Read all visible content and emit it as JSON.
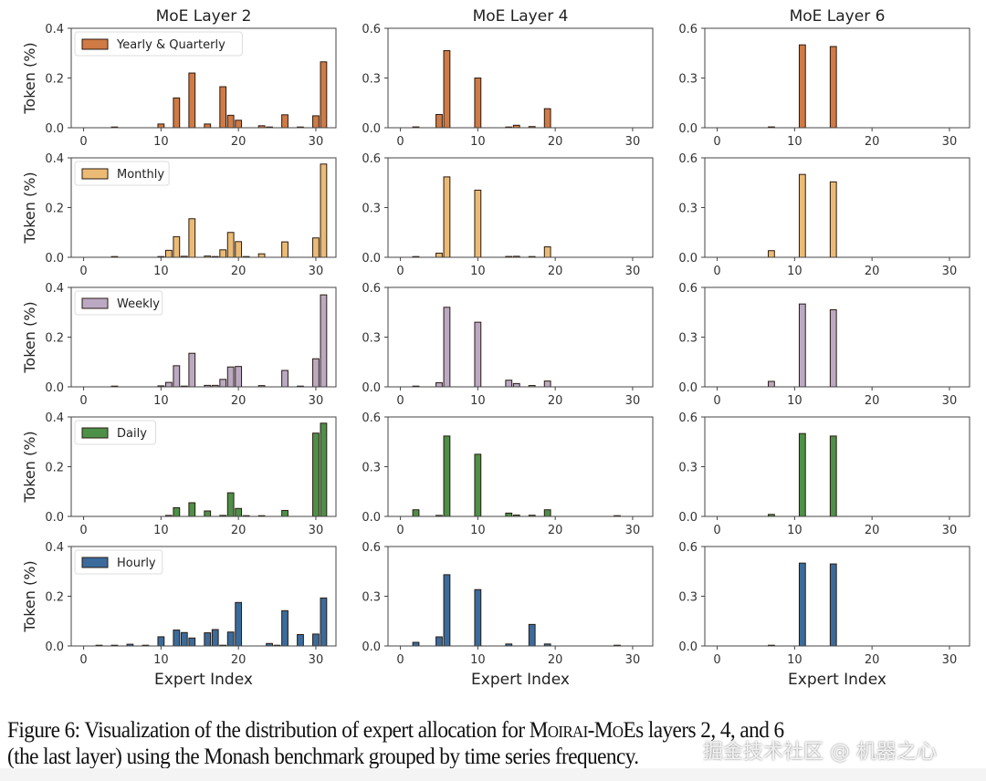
{
  "chart_data": {
    "type": "bar",
    "layout": "grid 5 rows x 3 columns",
    "xlabel": "Expert Index",
    "ylabel": "Token (%)",
    "x_categories": [
      0,
      1,
      2,
      3,
      4,
      5,
      6,
      7,
      8,
      9,
      10,
      11,
      12,
      13,
      14,
      15,
      16,
      17,
      18,
      19,
      20,
      21,
      22,
      23,
      24,
      25,
      26,
      27,
      28,
      29,
      30,
      31
    ],
    "xticks": [
      "0",
      "10",
      "20",
      "30"
    ],
    "grid": false,
    "legend_position": "top-left",
    "columns": [
      {
        "title": "MoE Layer 2",
        "ylim": [
          0,
          0.4
        ],
        "yticks": [
          "0.0",
          "0.2",
          "0.4"
        ]
      },
      {
        "title": "MoE Layer 4",
        "ylim": [
          0,
          0.6
        ],
        "yticks": [
          "0.0",
          "0.3",
          "0.6"
        ]
      },
      {
        "title": "MoE Layer 6",
        "ylim": [
          0,
          0.6
        ],
        "yticks": [
          "0.0",
          "0.3",
          "0.6"
        ]
      }
    ],
    "series": [
      {
        "name": "Yearly & Quarterly",
        "color": "#d07a45",
        "layers": {
          "layer2": {
            "4": 0.001,
            "10": 0.015,
            "12": 0.12,
            "14": 0.22,
            "16": 0.015,
            "18": 0.165,
            "19": 0.05,
            "20": 0.03,
            "23": 0.008,
            "24": 0.002,
            "26": 0.052,
            "28": 0.001,
            "30": 0.048,
            "31": 0.265
          },
          "layer4": {
            "2": 0.005,
            "5": 0.08,
            "6": 0.465,
            "10": 0.3,
            "14": 0.004,
            "15": 0.015,
            "17": 0.007,
            "19": 0.115
          },
          "layer6": {
            "7": 0.005,
            "11": 0.5,
            "15": 0.49
          }
        }
      },
      {
        "name": "Monthly",
        "color": "#ebbb75",
        "layers": {
          "layer2": {
            "4": 0.001,
            "10": 0.003,
            "11": 0.028,
            "12": 0.083,
            "13": 0.004,
            "14": 0.155,
            "16": 0.005,
            "17": 0.003,
            "18": 0.03,
            "19": 0.1,
            "20": 0.063,
            "21": 0.002,
            "23": 0.014,
            "26": 0.062,
            "30": 0.078,
            "31": 0.375
          },
          "layer4": {
            "2": 0.004,
            "5": 0.025,
            "6": 0.485,
            "10": 0.405,
            "14": 0.005,
            "15": 0.006,
            "17": 0.003,
            "19": 0.063
          },
          "layer6": {
            "7": 0.04,
            "11": 0.5,
            "15": 0.455
          }
        }
      },
      {
        "name": "Weekly",
        "color": "#bba9c4",
        "layers": {
          "layer2": {
            "4": 0.002,
            "10": 0.004,
            "11": 0.018,
            "12": 0.085,
            "13": 0.002,
            "14": 0.135,
            "16": 0.006,
            "17": 0.006,
            "18": 0.03,
            "19": 0.08,
            "20": 0.082,
            "23": 0.005,
            "26": 0.066,
            "28": 0.001,
            "30": 0.113,
            "31": 0.37
          },
          "layer4": {
            "2": 0.003,
            "5": 0.025,
            "6": 0.48,
            "10": 0.39,
            "14": 0.04,
            "15": 0.02,
            "17": 0.008,
            "19": 0.035
          },
          "layer6": {
            "7": 0.033,
            "11": 0.5,
            "15": 0.465
          }
        }
      },
      {
        "name": "Daily",
        "color": "#4d9048",
        "layers": {
          "layer2": {
            "11": 0.004,
            "12": 0.035,
            "14": 0.055,
            "16": 0.022,
            "18": 0.004,
            "19": 0.095,
            "20": 0.032,
            "21": 0.001,
            "23": 0.002,
            "26": 0.024,
            "30": 0.335,
            "31": 0.375
          },
          "layer4": {
            "2": 0.04,
            "5": 0.006,
            "6": 0.485,
            "10": 0.375,
            "14": 0.02,
            "15": 0.008,
            "17": 0.007,
            "19": 0.04,
            "28": 0.002
          },
          "layer6": {
            "7": 0.012,
            "11": 0.5,
            "15": 0.485
          }
        }
      },
      {
        "name": "Hourly",
        "color": "#3a6b9c",
        "layers": {
          "layer2": {
            "2": 0.001,
            "4": 0.002,
            "6": 0.007,
            "8": 0.002,
            "10": 0.037,
            "12": 0.064,
            "13": 0.054,
            "14": 0.032,
            "16": 0.053,
            "17": 0.066,
            "18": 0.003,
            "19": 0.056,
            "20": 0.175,
            "24": 0.01,
            "25": 0.001,
            "26": 0.142,
            "28": 0.046,
            "30": 0.048,
            "31": 0.193
          },
          "layer4": {
            "2": 0.022,
            "5": 0.055,
            "6": 0.43,
            "10": 0.34,
            "14": 0.012,
            "17": 0.13,
            "19": 0.012,
            "28": 0.002
          },
          "layer6": {
            "7": 0.003,
            "11": 0.5,
            "15": 0.495
          }
        }
      }
    ]
  },
  "caption": {
    "line1_prefix": "Figure 6: Visualization of the distribution of expert allocation for ",
    "model_name": "Moirai-MoE",
    "line1_suffix": "s layers 2, 4, and 6",
    "line2": "(the last layer) using the Monash benchmark grouped by time series frequency."
  },
  "watermark": "掘金技术社区 @ 机器之心"
}
